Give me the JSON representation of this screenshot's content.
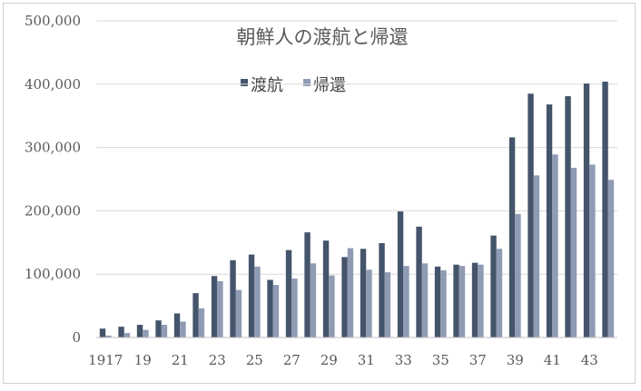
{
  "chart_data": {
    "type": "bar",
    "title": "朝鮮人の渡航と帰還",
    "xlabel": "",
    "ylabel": "",
    "ylim": [
      0,
      500000
    ],
    "grid": true,
    "legend_position": "top-center",
    "y_ticks": [
      "0",
      "100,000",
      "200,000",
      "300,000",
      "400,000",
      "500,000"
    ],
    "x_tick_labels": [
      "1917",
      "19",
      "21",
      "23",
      "25",
      "27",
      "29",
      "31",
      "33",
      "35",
      "37",
      "39",
      "41",
      "43"
    ],
    "categories": [
      "1917",
      "1918",
      "1919",
      "1920",
      "1921",
      "1922",
      "1923",
      "1924",
      "1925",
      "1926",
      "1927",
      "1928",
      "1929",
      "1930",
      "1931",
      "1932",
      "1933",
      "1934",
      "1935",
      "1936",
      "1937",
      "1938",
      "1939",
      "1940",
      "1941",
      "1942",
      "1943",
      "1944"
    ],
    "series": [
      {
        "name": "渡航",
        "color": "#44546a",
        "values": [
          14000,
          17000,
          20000,
          27000,
          38000,
          70000,
          97000,
          122000,
          131000,
          91000,
          138000,
          166000,
          153000,
          127000,
          140000,
          149000,
          199000,
          175000,
          112000,
          115000,
          118000,
          161000,
          316000,
          385000,
          368000,
          381000,
          401000,
          404000
        ]
      },
      {
        "name": "帰還",
        "color": "#8f9bb3",
        "values": [
          3000,
          7000,
          12000,
          20000,
          25000,
          46000,
          89000,
          75000,
          112000,
          83000,
          93000,
          117000,
          98000,
          141000,
          107000,
          103000,
          113000,
          117000,
          106000,
          113000,
          115000,
          140000,
          195000,
          256000,
          289000,
          268000,
          273000,
          249000
        ]
      }
    ]
  }
}
